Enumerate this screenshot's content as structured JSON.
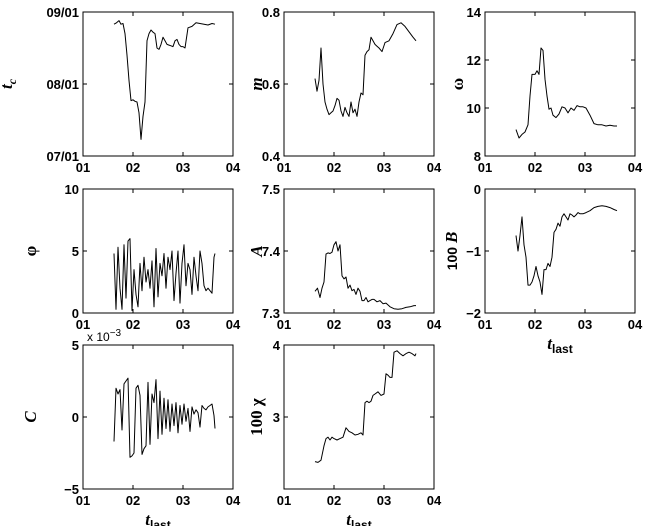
{
  "chart_data": [
    {
      "type": "line",
      "ylabel": "t_c",
      "ylabel_parts": [
        "t",
        "c"
      ],
      "xlim": [
        1,
        4
      ],
      "ylim": [
        7,
        9
      ],
      "xticks": [
        1,
        2,
        3,
        4
      ],
      "xtick_labels": [
        "01",
        "02",
        "03",
        "04"
      ],
      "yticks": [
        7,
        8,
        9
      ],
      "ytick_labels": [
        "07/01",
        "08/01",
        "09/01"
      ],
      "x": [
        1.62,
        1.67,
        1.72,
        1.76,
        1.8,
        1.84,
        1.88,
        1.92,
        1.96,
        2.0,
        2.04,
        2.08,
        2.12,
        2.16,
        2.2,
        2.24,
        2.28,
        2.32,
        2.36,
        2.4,
        2.44,
        2.48,
        2.52,
        2.56,
        2.6,
        2.64,
        2.68,
        2.72,
        2.76,
        2.8,
        2.84,
        2.88,
        2.92,
        2.96,
        3.0,
        3.04,
        3.1,
        3.18,
        3.26,
        3.34,
        3.42,
        3.5,
        3.58,
        3.64
      ],
      "y": [
        8.83,
        8.85,
        8.88,
        8.83,
        8.84,
        8.7,
        8.4,
        8.05,
        7.77,
        7.78,
        7.76,
        7.75,
        7.6,
        7.23,
        7.55,
        7.75,
        8.6,
        8.7,
        8.75,
        8.72,
        8.7,
        8.5,
        8.48,
        8.55,
        8.65,
        8.6,
        8.55,
        8.54,
        8.53,
        8.52,
        8.6,
        8.62,
        8.55,
        8.52,
        8.52,
        8.5,
        8.78,
        8.8,
        8.85,
        8.84,
        8.83,
        8.82,
        8.84,
        8.83
      ]
    },
    {
      "type": "line",
      "ylabel": "m",
      "xlim": [
        1,
        4
      ],
      "ylim": [
        0.4,
        0.8
      ],
      "xticks": [
        1,
        2,
        3,
        4
      ],
      "xtick_labels": [
        "01",
        "02",
        "03",
        "04"
      ],
      "yticks": [
        0.4,
        0.6,
        0.8
      ],
      "ytick_labels": [
        "0.4",
        "0.6",
        "0.8"
      ],
      "x": [
        1.62,
        1.66,
        1.7,
        1.74,
        1.78,
        1.82,
        1.86,
        1.9,
        1.94,
        1.98,
        2.02,
        2.06,
        2.1,
        2.14,
        2.18,
        2.22,
        2.26,
        2.3,
        2.34,
        2.38,
        2.42,
        2.46,
        2.5,
        2.54,
        2.58,
        2.62,
        2.66,
        2.7,
        2.74,
        2.78,
        2.82,
        2.86,
        2.9,
        2.96,
        3.02,
        3.1,
        3.18,
        3.26,
        3.34,
        3.42,
        3.5,
        3.58,
        3.64
      ],
      "y": [
        0.615,
        0.58,
        0.61,
        0.7,
        0.6,
        0.55,
        0.53,
        0.515,
        0.52,
        0.525,
        0.54,
        0.56,
        0.555,
        0.525,
        0.51,
        0.535,
        0.52,
        0.51,
        0.55,
        0.52,
        0.53,
        0.51,
        0.55,
        0.575,
        0.57,
        0.68,
        0.69,
        0.695,
        0.73,
        0.72,
        0.71,
        0.705,
        0.7,
        0.69,
        0.715,
        0.72,
        0.74,
        0.765,
        0.77,
        0.76,
        0.745,
        0.73,
        0.72
      ]
    },
    {
      "type": "line",
      "ylabel": "ω",
      "xlim": [
        1,
        4
      ],
      "ylim": [
        8,
        14
      ],
      "xticks": [
        1,
        2,
        3,
        4
      ],
      "xtick_labels": [
        "01",
        "02",
        "03",
        "04"
      ],
      "yticks": [
        8,
        10,
        12,
        14
      ],
      "ytick_labels": [
        "8",
        "10",
        "12",
        "14"
      ],
      "x": [
        1.62,
        1.68,
        1.74,
        1.8,
        1.86,
        1.9,
        1.94,
        2.0,
        2.04,
        2.08,
        2.12,
        2.16,
        2.2,
        2.24,
        2.28,
        2.32,
        2.36,
        2.42,
        2.48,
        2.54,
        2.6,
        2.66,
        2.72,
        2.78,
        2.84,
        2.9,
        2.96,
        3.02,
        3.1,
        3.18,
        3.26,
        3.34,
        3.42,
        3.5,
        3.58,
        3.64
      ],
      "y": [
        9.1,
        8.75,
        8.9,
        9.0,
        9.3,
        10.5,
        11.4,
        11.4,
        11.55,
        11.4,
        12.5,
        12.4,
        11.2,
        10.5,
        9.95,
        10.0,
        9.7,
        9.6,
        9.75,
        10.05,
        10.0,
        9.8,
        10.0,
        9.9,
        10.1,
        10.05,
        10.05,
        10.0,
        9.7,
        9.35,
        9.3,
        9.3,
        9.25,
        9.28,
        9.25,
        9.25
      ]
    },
    {
      "type": "line",
      "ylabel": "φ",
      "xlim": [
        1,
        4
      ],
      "ylim": [
        0,
        10
      ],
      "xticks": [
        1,
        2,
        3,
        4
      ],
      "xtick_labels": [
        "01",
        "02",
        "03",
        "04"
      ],
      "yticks": [
        0,
        5,
        10
      ],
      "ytick_labels": [
        "0",
        "5",
        "10"
      ],
      "x": [
        1.62,
        1.66,
        1.7,
        1.74,
        1.78,
        1.82,
        1.86,
        1.9,
        1.94,
        1.98,
        2.02,
        2.06,
        2.1,
        2.14,
        2.18,
        2.22,
        2.26,
        2.3,
        2.34,
        2.38,
        2.42,
        2.46,
        2.5,
        2.54,
        2.58,
        2.62,
        2.66,
        2.7,
        2.74,
        2.78,
        2.82,
        2.86,
        2.9,
        2.94,
        2.98,
        3.02,
        3.06,
        3.1,
        3.14,
        3.18,
        3.22,
        3.26,
        3.3,
        3.34,
        3.38,
        3.42,
        3.46,
        3.5,
        3.54,
        3.58,
        3.62,
        3.64
      ],
      "y": [
        4.8,
        0.3,
        5.3,
        2.0,
        0.3,
        5.5,
        1.2,
        5.8,
        6.0,
        0.2,
        3.5,
        1.5,
        0.5,
        4.0,
        1.8,
        4.5,
        2.5,
        3.5,
        2.0,
        4.2,
        0.5,
        5.2,
        1.3,
        4.0,
        3.0,
        4.8,
        2.0,
        4.5,
        3.5,
        5.0,
        1.0,
        3.2,
        5.0,
        0.8,
        4.0,
        5.5,
        2.2,
        4.0,
        3.5,
        1.5,
        4.5,
        3.0,
        1.8,
        5.0,
        4.0,
        2.2,
        1.8,
        2.0,
        1.8,
        1.6,
        4.5,
        4.8
      ]
    },
    {
      "type": "line",
      "ylabel": "A",
      "xlim": [
        1,
        4
      ],
      "ylim": [
        7.3,
        7.5
      ],
      "xticks": [
        1,
        2,
        3,
        4
      ],
      "xtick_labels": [
        "01",
        "02",
        "03",
        "04"
      ],
      "yticks": [
        7.3,
        7.4,
        7.5
      ],
      "ytick_labels": [
        "7.3",
        "7.4",
        "7.5"
      ],
      "x": [
        1.62,
        1.67,
        1.72,
        1.76,
        1.8,
        1.84,
        1.88,
        1.92,
        1.96,
        2.0,
        2.04,
        2.08,
        2.12,
        2.16,
        2.2,
        2.24,
        2.28,
        2.32,
        2.36,
        2.4,
        2.44,
        2.48,
        2.52,
        2.56,
        2.6,
        2.64,
        2.68,
        2.72,
        2.76,
        2.8,
        2.86,
        2.92,
        2.98,
        3.04,
        3.12,
        3.2,
        3.28,
        3.36,
        3.44,
        3.52,
        3.6,
        3.64
      ],
      "y": [
        7.335,
        7.34,
        7.325,
        7.34,
        7.35,
        7.395,
        7.397,
        7.396,
        7.398,
        7.41,
        7.415,
        7.4,
        7.41,
        7.36,
        7.355,
        7.358,
        7.34,
        7.345,
        7.336,
        7.338,
        7.33,
        7.34,
        7.335,
        7.32,
        7.32,
        7.325,
        7.318,
        7.32,
        7.322,
        7.322,
        7.318,
        7.32,
        7.315,
        7.316,
        7.31,
        7.307,
        7.306,
        7.307,
        7.309,
        7.31,
        7.312,
        7.312
      ]
    },
    {
      "type": "line",
      "ylabel": "100 B",
      "ylabel_parts": [
        "100 ",
        "B"
      ],
      "xlim": [
        1,
        4
      ],
      "ylim": [
        -2,
        0
      ],
      "xticks": [
        1,
        2,
        3,
        4
      ],
      "xtick_labels": [
        "01",
        "02",
        "03",
        "04"
      ],
      "yticks": [
        -2,
        -1,
        0
      ],
      "ytick_labels": [
        "−2",
        "−1",
        "0"
      ],
      "x": [
        1.62,
        1.66,
        1.7,
        1.74,
        1.78,
        1.82,
        1.86,
        1.9,
        1.94,
        1.98,
        2.02,
        2.06,
        2.1,
        2.14,
        2.18,
        2.22,
        2.26,
        2.3,
        2.34,
        2.38,
        2.42,
        2.46,
        2.5,
        2.54,
        2.58,
        2.62,
        2.66,
        2.7,
        2.74,
        2.78,
        2.82,
        2.86,
        2.9,
        2.96,
        3.02,
        3.1,
        3.18,
        3.26,
        3.34,
        3.42,
        3.5,
        3.58,
        3.64
      ],
      "y": [
        -0.75,
        -1.0,
        -0.75,
        -0.45,
        -0.9,
        -1.1,
        -1.55,
        -1.55,
        -1.5,
        -1.4,
        -1.25,
        -1.4,
        -1.5,
        -1.7,
        -1.3,
        -1.3,
        -1.2,
        -1.25,
        -1.1,
        -0.7,
        -0.65,
        -0.55,
        -0.6,
        -0.45,
        -0.4,
        -0.45,
        -0.5,
        -0.4,
        -0.42,
        -0.45,
        -0.42,
        -0.38,
        -0.4,
        -0.4,
        -0.38,
        -0.35,
        -0.3,
        -0.28,
        -0.27,
        -0.28,
        -0.3,
        -0.33,
        -0.35
      ]
    },
    {
      "type": "line",
      "ylabel": "C",
      "xlabel": "t_last",
      "xlabel_parts": [
        "t",
        "last"
      ],
      "multiplier": [
        "x 10",
        "−3"
      ],
      "xlim": [
        1,
        4
      ],
      "ylim": [
        -5,
        5
      ],
      "xticks": [
        1,
        2,
        3,
        4
      ],
      "xtick_labels": [
        "01",
        "02",
        "03",
        "04"
      ],
      "yticks": [
        -5,
        0,
        5
      ],
      "ytick_labels": [
        "−5",
        "0",
        "5"
      ],
      "x": [
        1.62,
        1.66,
        1.7,
        1.74,
        1.78,
        1.82,
        1.86,
        1.9,
        1.94,
        1.98,
        2.02,
        2.06,
        2.1,
        2.14,
        2.18,
        2.22,
        2.26,
        2.3,
        2.34,
        2.38,
        2.42,
        2.46,
        2.5,
        2.54,
        2.58,
        2.62,
        2.66,
        2.7,
        2.74,
        2.78,
        2.82,
        2.86,
        2.9,
        2.94,
        2.98,
        3.02,
        3.06,
        3.1,
        3.14,
        3.18,
        3.22,
        3.26,
        3.3,
        3.34,
        3.38,
        3.42,
        3.46,
        3.5,
        3.54,
        3.58,
        3.62,
        3.64
      ],
      "y": [
        -1.7,
        2.0,
        1.6,
        1.9,
        -0.9,
        2.3,
        2.5,
        2.7,
        -2.8,
        -2.7,
        -2.5,
        2.0,
        2.2,
        1.5,
        -2.6,
        -2.2,
        -2.0,
        2.4,
        -1.9,
        1.6,
        1.0,
        2.6,
        -1.5,
        1.8,
        -1.2,
        1.3,
        -0.8,
        1.2,
        -1.0,
        0.9,
        -0.6,
        1.0,
        -1.1,
        0.8,
        -0.5,
        0.9,
        -0.3,
        0.6,
        -1.0,
        0.7,
        0.2,
        0.5,
        0.3,
        -0.7,
        0.8,
        0.6,
        0.5,
        0.7,
        0.8,
        0.9,
        0.1,
        -0.8
      ]
    },
    {
      "type": "line",
      "ylabel": "100 χ",
      "xlabel": "t_last",
      "xlabel_parts": [
        "t",
        "last"
      ],
      "xlim": [
        1,
        4
      ],
      "ylim": [
        2,
        4
      ],
      "xticks": [
        1,
        2,
        3,
        4
      ],
      "xtick_labels": [
        "01",
        "02",
        "03",
        "04"
      ],
      "yticks": [
        3,
        4
      ],
      "ytick_labels": [
        "3",
        "4"
      ],
      "x": [
        1.62,
        1.68,
        1.74,
        1.8,
        1.84,
        1.88,
        1.92,
        1.96,
        2.0,
        2.06,
        2.12,
        2.18,
        2.24,
        2.3,
        2.36,
        2.42,
        2.48,
        2.54,
        2.58,
        2.62,
        2.66,
        2.7,
        2.74,
        2.78,
        2.82,
        2.88,
        2.94,
        3.0,
        3.04,
        3.08,
        3.12,
        3.16,
        3.2,
        3.26,
        3.32,
        3.38,
        3.44,
        3.5,
        3.56,
        3.62,
        3.64
      ],
      "y": [
        2.38,
        2.37,
        2.4,
        2.6,
        2.7,
        2.72,
        2.68,
        2.72,
        2.7,
        2.68,
        2.7,
        2.72,
        2.85,
        2.8,
        2.78,
        2.75,
        2.76,
        2.78,
        2.75,
        3.2,
        3.22,
        3.2,
        3.22,
        3.3,
        3.32,
        3.35,
        3.3,
        3.32,
        3.6,
        3.58,
        3.55,
        3.55,
        3.9,
        3.92,
        3.88,
        3.85,
        3.88,
        3.9,
        3.88,
        3.85,
        3.88
      ]
    },
    {
      "type": "line",
      "xlabel": "t_last",
      "xlabel_parts": [
        "t",
        "last"
      ],
      "note": "x-axis label under panel 6"
    }
  ]
}
